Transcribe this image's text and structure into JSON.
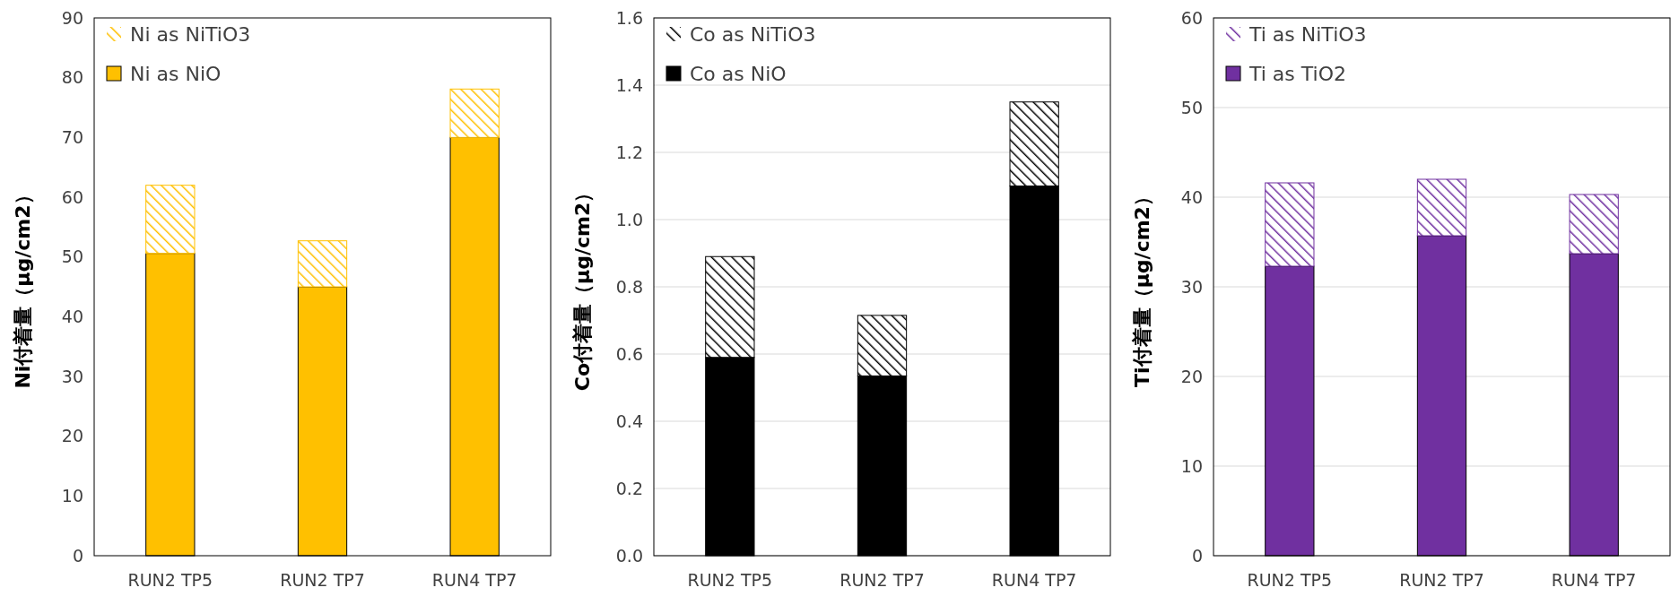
{
  "chart_data": [
    {
      "type": "bar",
      "stacked": true,
      "ylabel": "Ni付着量（μg/cm2）",
      "categories": [
        "RUN2 TP5",
        "RUN2 TP7",
        "RUN4 TP7"
      ],
      "ylim": [
        0,
        90
      ],
      "yticks": [
        0,
        10,
        20,
        30,
        40,
        50,
        60,
        70,
        80,
        90
      ],
      "grid": false,
      "legend": "top left",
      "series": [
        {
          "name": "Ni as NiO",
          "color": "#ffc000",
          "values": [
            50.6,
            45,
            70
          ]
        },
        {
          "name": "Ni as NiTiO3",
          "color": "#ffc000",
          "values": [
            11.4,
            7.7,
            8.1
          ]
        }
      ]
    },
    {
      "type": "bar",
      "stacked": true,
      "ylabel": "Co付着量（μg/cm2）",
      "categories": [
        "RUN2 TP5",
        "RUN2 TP7",
        "RUN4 TP7"
      ],
      "ylim": [
        0,
        1.6
      ],
      "yticks": [
        {
          "value": 0,
          "label": "0.0"
        },
        {
          "value": 0.2,
          "label": "0.2"
        },
        {
          "value": 0.4,
          "label": "0.4"
        },
        {
          "value": 0.6,
          "label": "0.6"
        },
        {
          "value": 0.8,
          "label": "0.8"
        },
        {
          "value": 1,
          "label": "1.0"
        },
        {
          "value": 1.2,
          "label": "1.2"
        },
        {
          "value": 1.4,
          "label": "1.4"
        },
        {
          "value": 1.6,
          "label": "1.6"
        }
      ],
      "grid": true,
      "legend": "top left",
      "series": [
        {
          "name": "Co as NiO",
          "color": "#000000",
          "values": [
            0.59,
            0.535,
            1.1
          ]
        },
        {
          "name": "Co as NiTiO3",
          "color": "#000000",
          "values": [
            0.3,
            0.18,
            0.25
          ]
        }
      ]
    },
    {
      "type": "bar",
      "stacked": true,
      "ylabel": "Ti付着量（μg/cm2）",
      "categories": [
        "RUN2 TP5",
        "RUN2 TP7",
        "RUN4 TP7"
      ],
      "ylim": [
        0,
        60
      ],
      "yticks": [
        0,
        10,
        20,
        30,
        40,
        50,
        60
      ],
      "grid": true,
      "legend": "top left",
      "series": [
        {
          "name": "Ti as TiO2",
          "color": "#7030a0",
          "values": [
            32.3,
            35.7,
            33.7
          ]
        },
        {
          "name": "Ti as NiTiO3",
          "color": "#7030a0",
          "values": [
            9.3,
            6.3,
            6.6
          ]
        }
      ]
    }
  ]
}
